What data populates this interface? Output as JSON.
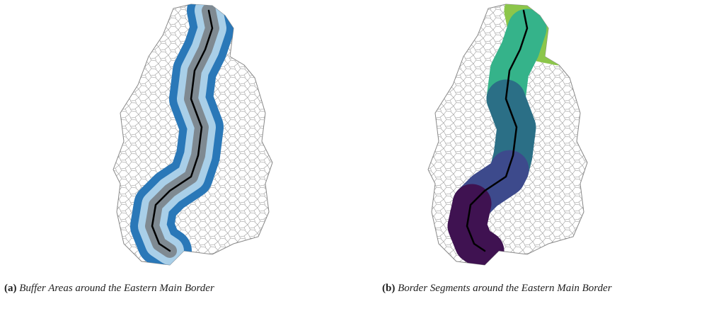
{
  "figures": [
    {
      "label": "(a)",
      "caption": "Buffer Areas around the Eastern Main Border"
    },
    {
      "label": "(b)",
      "caption": "Border Segments around the Eastern Main Border"
    }
  ]
}
